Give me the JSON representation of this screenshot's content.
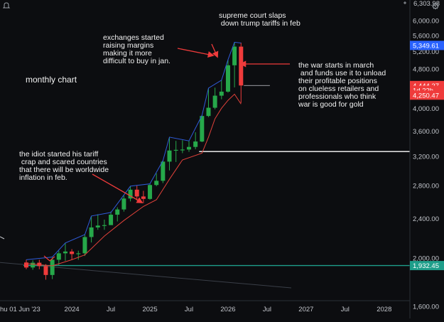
{
  "chart_data": {
    "type": "candlestick",
    "interval": "monthly",
    "price_axis": {
      "ticks": [
        "6,000.00",
        "5,600.00",
        "5,200.00",
        "4,800.00",
        "4,400.00",
        "4,000.00",
        "3,600.00",
        "3,200.00",
        "2,800.00",
        "2,400.00",
        "2,000.00",
        "1,600.00"
      ],
      "tick_values": [
        6000,
        5600,
        5200,
        4800,
        4400,
        4000,
        3600,
        3200,
        2800,
        2400,
        2000,
        1600
      ],
      "range": [
        1450,
        6500
      ],
      "top_label": "6,303.98"
    },
    "time_axis": {
      "labels": [
        "hu 01 Jun '23",
        "2024",
        "Jul",
        "2025",
        "Jul",
        "2026",
        "Jul",
        "2027",
        "Jul",
        "2028"
      ],
      "label_months": [
        0,
        7,
        13,
        19,
        25,
        31,
        37,
        43,
        49,
        55
      ]
    },
    "price_labels": [
      {
        "text": "5,349.61",
        "value": 5349.61,
        "color": "#2962ff"
      },
      {
        "text": "4,444.27",
        "value": 4444.27,
        "color": "#ef3b3b"
      },
      {
        "text": "1d 22h",
        "value": 4345,
        "color": "#ef3b3b"
      },
      {
        "text": "4,250.47",
        "value": 4250.47,
        "color": "#ef3b3b"
      },
      {
        "text": "1,932.45",
        "value": 1932.45,
        "color": "#1e9e8a"
      }
    ],
    "candles": [
      {
        "m": 0,
        "o": 1960,
        "h": 1985,
        "l": 1900,
        "c": 1915
      },
      {
        "m": 1,
        "o": 1915,
        "h": 1980,
        "l": 1895,
        "c": 1958
      },
      {
        "m": 2,
        "o": 1958,
        "h": 1985,
        "l": 1900,
        "c": 1928
      },
      {
        "m": 3,
        "o": 1928,
        "h": 1945,
        "l": 1810,
        "c": 1850
      },
      {
        "m": 4,
        "o": 1850,
        "h": 2010,
        "l": 1815,
        "c": 1985
      },
      {
        "m": 5,
        "o": 1985,
        "h": 2070,
        "l": 1935,
        "c": 2045
      },
      {
        "m": 6,
        "o": 2045,
        "h": 2145,
        "l": 1975,
        "c": 2062
      },
      {
        "m": 7,
        "o": 2062,
        "h": 2085,
        "l": 1985,
        "c": 2038
      },
      {
        "m": 8,
        "o": 2038,
        "h": 2070,
        "l": 1985,
        "c": 2045
      },
      {
        "m": 9,
        "o": 2045,
        "h": 2230,
        "l": 2020,
        "c": 2205
      },
      {
        "m": 10,
        "o": 2205,
        "h": 2430,
        "l": 2150,
        "c": 2305
      },
      {
        "m": 11,
        "o": 2305,
        "h": 2450,
        "l": 2280,
        "c": 2325
      },
      {
        "m": 12,
        "o": 2325,
        "h": 2390,
        "l": 2280,
        "c": 2330
      },
      {
        "m": 13,
        "o": 2330,
        "h": 2480,
        "l": 2350,
        "c": 2445
      },
      {
        "m": 14,
        "o": 2445,
        "h": 2530,
        "l": 2370,
        "c": 2505
      },
      {
        "m": 15,
        "o": 2505,
        "h": 2670,
        "l": 2480,
        "c": 2635
      },
      {
        "m": 16,
        "o": 2635,
        "h": 2790,
        "l": 2600,
        "c": 2745
      },
      {
        "m": 17,
        "o": 2745,
        "h": 2800,
        "l": 2610,
        "c": 2660
      },
      {
        "m": 18,
        "o": 2660,
        "h": 2730,
        "l": 2580,
        "c": 2630
      },
      {
        "m": 19,
        "o": 2630,
        "h": 2820,
        "l": 2620,
        "c": 2805
      },
      {
        "m": 20,
        "o": 2805,
        "h": 2960,
        "l": 2790,
        "c": 2860
      },
      {
        "m": 21,
        "o": 2860,
        "h": 3140,
        "l": 2830,
        "c": 3125
      },
      {
        "m": 22,
        "o": 3125,
        "h": 3500,
        "l": 3000,
        "c": 3290
      },
      {
        "m": 23,
        "o": 3290,
        "h": 3440,
        "l": 3120,
        "c": 3300
      },
      {
        "m": 24,
        "o": 3300,
        "h": 3450,
        "l": 3250,
        "c": 3305
      },
      {
        "m": 25,
        "o": 3305,
        "h": 3440,
        "l": 3270,
        "c": 3345
      },
      {
        "m": 26,
        "o": 3345,
        "h": 3580,
        "l": 3310,
        "c": 3430
      },
      {
        "m": 27,
        "o": 3430,
        "h": 3870,
        "l": 3420,
        "c": 3860
      },
      {
        "m": 28,
        "o": 3860,
        "h": 4390,
        "l": 3840,
        "c": 4010
      },
      {
        "m": 29,
        "o": 4010,
        "h": 4400,
        "l": 3980,
        "c": 4240
      },
      {
        "m": 30,
        "o": 4240,
        "h": 4555,
        "l": 4170,
        "c": 4320
      },
      {
        "m": 31,
        "o": 4320,
        "h": 5010,
        "l": 4300,
        "c": 4880
      },
      {
        "m": 32,
        "o": 4880,
        "h": 5430,
        "l": 4405,
        "c": 5320
      },
      {
        "m": 33,
        "o": 5320,
        "h": 5420,
        "l": 4100,
        "c": 4444.27
      }
    ],
    "ma_fast": [
      [
        0,
        1985
      ],
      [
        4,
        2010
      ],
      [
        6,
        2145
      ],
      [
        9,
        2230
      ],
      [
        10,
        2430
      ],
      [
        13,
        2470
      ],
      [
        16,
        2790
      ],
      [
        19,
        2820
      ],
      [
        21,
        3140
      ],
      [
        22,
        3500
      ],
      [
        25,
        3440
      ],
      [
        27,
        3870
      ],
      [
        28,
        4390
      ],
      [
        30,
        4555
      ],
      [
        31,
        5010
      ],
      [
        32,
        5430
      ],
      [
        33,
        5410
      ]
    ],
    "ma_slow": [
      [
        0,
        1950
      ],
      [
        4,
        1930
      ],
      [
        7,
        1985
      ],
      [
        9,
        2030
      ],
      [
        12,
        2215
      ],
      [
        15,
        2380
      ],
      [
        18,
        2540
      ],
      [
        20,
        2620
      ],
      [
        22,
        2880
      ],
      [
        24,
        3150
      ],
      [
        27,
        3250
      ],
      [
        28,
        3500
      ],
      [
        29,
        3810
      ],
      [
        30,
        4000
      ],
      [
        31,
        4150
      ],
      [
        32,
        4270
      ],
      [
        33,
        4080
      ]
    ],
    "horizontal_lines": [
      {
        "value": 3275,
        "from_month": 27,
        "color": "#ffffff"
      },
      {
        "value": 1932.45,
        "from_month": 0,
        "color": "#1e9e8a"
      }
    ],
    "last_price_marker": {
      "value": 4444.27,
      "from_month": 33,
      "to_month": 37
    },
    "annotations": {
      "chart_label": "monthly chart",
      "supreme_court": "supreme court slaps\n down trump tariffs in feb",
      "exchanges": "exchanges started\nraising margins\nmaking it more\ndifficult to buy in jan.",
      "war": "the war starts in march\n and funds use it to unload\ntheir profitable positions\non clueless retailers and\nprofessionals who think\nwar is good for gold",
      "tariff": "the idiot started his tariff\n crap and scared countries\nthat there will be worldwide\ninflation in feb."
    },
    "colors": {
      "up": "#26a84a",
      "down": "#ef3b3b",
      "ma_fast": "#2f5bd8",
      "ma_slow": "#e0413a",
      "arrow": "#ef3b3b"
    }
  }
}
